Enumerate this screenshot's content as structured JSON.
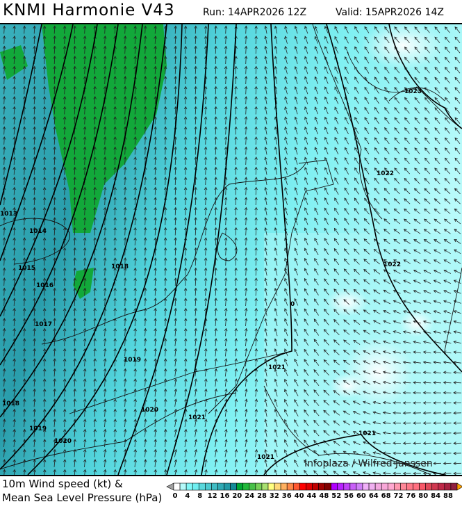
{
  "header": {
    "title": "KNMI Harmonie V43",
    "run": "Run: 14APR2026 12Z",
    "valid": "Valid: 15APR2026 14Z"
  },
  "map": {
    "credit": "Infoplaza / Wilfred Janssen",
    "isobar_labels": [
      "1013",
      "1014",
      "1015",
      "1016",
      "1017",
      "1018",
      "1019",
      "1018",
      "1019",
      "1020",
      "1020",
      "1021",
      "1021",
      "1021",
      "1021",
      "1022",
      "1022",
      "1023",
      "0"
    ],
    "colors": {
      "isobar": "#000000",
      "coast": "#000000",
      "arrow": "#222222",
      "low_wind": "#80f8f8",
      "mid_wind": "#229aa6",
      "strong_wind": "#00a832"
    }
  },
  "footer": {
    "line1": "10m Wind speed (kt) &",
    "line2": "Mean Sea Level Pressure (hPa)"
  },
  "legend": {
    "unit": "kt",
    "tick_labels": [
      "0",
      "4",
      "8",
      "12",
      "16",
      "20",
      "24",
      "28",
      "32",
      "36",
      "40",
      "44",
      "48",
      "52",
      "56",
      "60",
      "64",
      "68",
      "72",
      "76",
      "80",
      "84",
      "88"
    ],
    "below_color": "#a0a0a0",
    "above_color": "#ffa000",
    "colors": [
      "#ffffff",
      "#b4fafa",
      "#80f8f8",
      "#6eeef0",
      "#5ad8dc",
      "#4ccad0",
      "#40bcc4",
      "#30aab4",
      "#229aa6",
      "#148a98",
      "#00a832",
      "#22b83a",
      "#48c048",
      "#78d058",
      "#a8e070",
      "#ffff80",
      "#ffd878",
      "#ffb060",
      "#ff8848",
      "#ff5830",
      "#ff0000",
      "#e00000",
      "#c00000",
      "#a00000",
      "#800000",
      "#b000ff",
      "#b820ff",
      "#c040f8",
      "#c860f8",
      "#d080f8",
      "#f0b0f8",
      "#f0b0f0",
      "#f4a8e0",
      "#f8a8d8",
      "#ffa8d0",
      "#ff98b0",
      "#ff8898",
      "#ff7888",
      "#ff7080",
      "#f85868",
      "#e04858",
      "#d03850",
      "#c02848",
      "#a82040",
      "#902040"
    ]
  }
}
